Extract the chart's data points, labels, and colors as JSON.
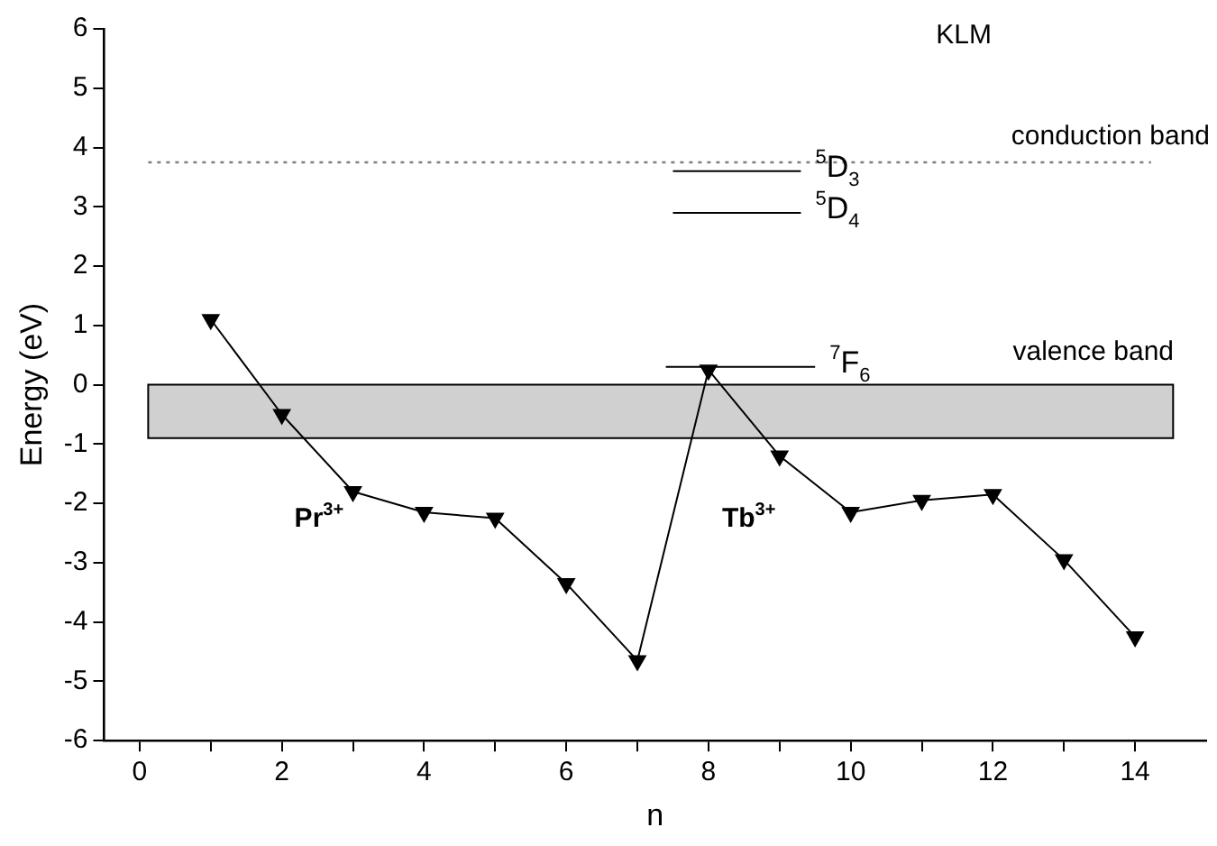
{
  "chart_data": {
    "type": "line",
    "title": "KLM",
    "xlabel": "n",
    "ylabel": "Energy (eV)",
    "x": [
      1,
      2,
      3,
      4,
      5,
      6,
      7,
      8,
      9,
      10,
      11,
      12,
      13,
      14
    ],
    "series": [
      {
        "color": "#000000",
        "values": [
          1.1,
          -0.5,
          -1.8,
          -2.15,
          -2.25,
          -3.35,
          -4.65,
          0.25,
          -1.2,
          -2.15,
          -1.95,
          -1.85,
          -2.95,
          -4.25
        ]
      },
      {
        "name": "$^{5}$D$_{3}$",
        "color": "#000000",
        "marker": "none",
        "x": [
          7.5,
          9.3
        ],
        "values": [
          3.6,
          3.6
        ]
      },
      {
        "name": "$^{5}$D$_{4}$",
        "color": "#000000",
        "marker": "none",
        "x": [
          7.5,
          9.3
        ],
        "values": [
          2.9,
          2.9
        ]
      },
      {
        "name": "$^{7}$F$_{6}$",
        "color": "#000000",
        "marker": "none",
        "x": [
          7.4,
          9.5
        ],
        "values": [
          0.3,
          0.3
        ]
      }
    ],
    "marker": "triangle",
    "line_style": "solid",
    "xlim": [
      -0.5,
      15
    ],
    "xticks": [
      0,
      {
        "value": 1,
        "label": null
      },
      2,
      {
        "value": 3,
        "label": null
      },
      4,
      {
        "value": 5,
        "label": null
      },
      6,
      {
        "value": 7,
        "label": null
      },
      8,
      {
        "value": 9,
        "label": null
      },
      10,
      {
        "value": 11,
        "label": null
      },
      12,
      {
        "value": 13,
        "label": null
      },
      14
    ],
    "ylim": [
      -6,
      6
    ],
    "yticks": [
      -6,
      -5,
      -4,
      -3,
      -2,
      -1,
      0,
      1,
      2,
      3,
      4,
      5,
      6
    ],
    "ref_lines": [
      {
        "axis": "y",
        "value": 3.75,
        "label": "conduction band",
        "line_style": "dotted",
        "color": "#808080"
      }
    ],
    "bands": [
      {
        "axis": "y",
        "from": -0.9,
        "to": 0,
        "label": "valence band",
        "color": "#d0d0d0"
      }
    ],
    "annotations": [
      "Pr$^{3+}$",
      "Tb$^{3+}$"
    ],
    "grid": false,
    "legend": false
  }
}
